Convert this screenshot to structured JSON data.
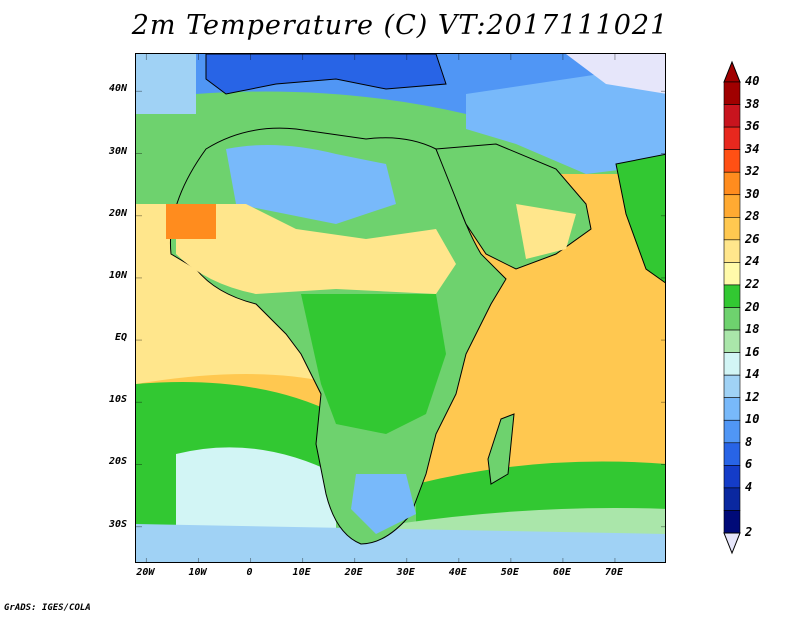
{
  "title": "2m Temperature (C) VT:2017111021",
  "footer": "GrADS: IGES/COLA",
  "map": {
    "lat_labels": [
      "40N",
      "30N",
      "20N",
      "10N",
      "EQ",
      "10S",
      "20S",
      "30S"
    ],
    "lat_values": [
      40,
      30,
      20,
      10,
      0,
      -10,
      -20,
      -30
    ],
    "lon_labels": [
      "20W",
      "10W",
      "0",
      "10E",
      "20E",
      "30E",
      "40E",
      "50E",
      "60E",
      "70E"
    ],
    "lon_values": [
      -20,
      -10,
      0,
      10,
      20,
      30,
      40,
      50,
      60,
      70
    ],
    "lon_range": [
      -22,
      80
    ],
    "lat_range": [
      -36,
      46
    ]
  },
  "colorbar": {
    "levels": [
      40,
      38,
      36,
      34,
      32,
      30,
      28,
      26,
      24,
      22,
      20,
      18,
      16,
      14,
      12,
      10,
      8,
      6,
      4,
      2
    ],
    "colors_top_to_bottom": [
      "#a00000",
      "#c8141e",
      "#e8281e",
      "#ff5014",
      "#ff8c1e",
      "#ffaa32",
      "#ffc850",
      "#ffe68c",
      "#fffaaa",
      "#32c832",
      "#6ed26e",
      "#aae6aa",
      "#d2f5f5",
      "#a0d2f5",
      "#78b9fa",
      "#5096f5",
      "#2864e6",
      "#143cc8",
      "#0a28a0",
      "#000a78"
    ],
    "over_color": "#a00000",
    "under_color": "#e6e6fa"
  },
  "colors": {
    "ocean_warm": "#ffc850",
    "ocean_mid": "#fffaaa",
    "ocean_cool": "#32c832",
    "land_green": "#6ed26e",
    "land_cold": "#5096f5",
    "desert_yellow": "#ffe68c",
    "hot_orange": "#ff8c1e",
    "border": "#000000"
  }
}
